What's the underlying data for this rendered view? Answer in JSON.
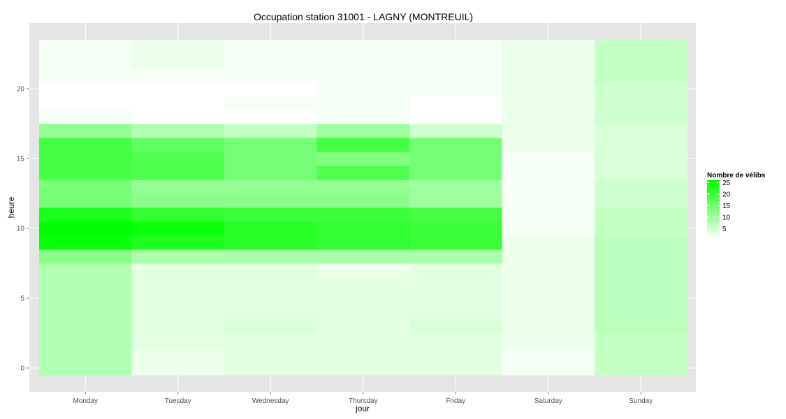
{
  "chart_data": {
    "type": "heatmap",
    "title": "Occupation station 31001 - LAGNY (MONTREUIL)",
    "xlabel": "jour",
    "ylabel": "heure",
    "categories": [
      "Monday",
      "Tuesday",
      "Wednesday",
      "Thursday",
      "Friday",
      "Saturday",
      "Sunday"
    ],
    "y_ticks": [
      0,
      5,
      10,
      15,
      20
    ],
    "y_range": [
      0,
      23
    ],
    "color_scale": {
      "low": "#ffffff",
      "high": "#00ff00",
      "min": 0,
      "max": 26
    },
    "legend": {
      "title": "Nombre de vélibs",
      "labels": [
        5,
        10,
        15,
        20,
        25
      ],
      "position": "right"
    },
    "grid": true,
    "rows": [
      {
        "hour": 0,
        "values": [
          8,
          2,
          3,
          3,
          3,
          1,
          6
        ]
      },
      {
        "hour": 1,
        "values": [
          8,
          2,
          3,
          3,
          3,
          1,
          6
        ]
      },
      {
        "hour": 2,
        "values": [
          8,
          3,
          3,
          3,
          3,
          2,
          6
        ]
      },
      {
        "hour": 3,
        "values": [
          8,
          3,
          4,
          3,
          4,
          2,
          7
        ]
      },
      {
        "hour": 4,
        "values": [
          8,
          3,
          3,
          3,
          3,
          2,
          7
        ]
      },
      {
        "hour": 5,
        "values": [
          8,
          3,
          3,
          3,
          3,
          2,
          7
        ]
      },
      {
        "hour": 6,
        "values": [
          8,
          3,
          3,
          3,
          3,
          2,
          7
        ]
      },
      {
        "hour": 7,
        "values": [
          8,
          3,
          3,
          2,
          3,
          2,
          7
        ]
      },
      {
        "hour": 8,
        "values": [
          12,
          9,
          9,
          9,
          9,
          2,
          7
        ]
      },
      {
        "hour": 9,
        "values": [
          25,
          23,
          22,
          21,
          20,
          2,
          7
        ]
      },
      {
        "hour": 10,
        "values": [
          26,
          25,
          22,
          21,
          20,
          1,
          6
        ]
      },
      {
        "hour": 11,
        "values": [
          23,
          21,
          20,
          20,
          19,
          1,
          6
        ]
      },
      {
        "hour": 12,
        "values": [
          14,
          12,
          12,
          12,
          10,
          1,
          5
        ]
      },
      {
        "hour": 13,
        "values": [
          14,
          11,
          11,
          11,
          10,
          1,
          5
        ]
      },
      {
        "hour": 14,
        "values": [
          19,
          18,
          14,
          18,
          14,
          1,
          4
        ]
      },
      {
        "hour": 15,
        "values": [
          19,
          18,
          14,
          13,
          14,
          1,
          4
        ]
      },
      {
        "hour": 16,
        "values": [
          19,
          16,
          14,
          19,
          14,
          2,
          4
        ]
      },
      {
        "hour": 17,
        "values": [
          11,
          8,
          6,
          10,
          5,
          2,
          4
        ]
      },
      {
        "hour": 18,
        "values": [
          1,
          0,
          0,
          1,
          0,
          2,
          5
        ]
      },
      {
        "hour": 19,
        "values": [
          0,
          0,
          1,
          1,
          0,
          2,
          5
        ]
      },
      {
        "hour": 20,
        "values": [
          0,
          0,
          0,
          1,
          1,
          2,
          5
        ]
      },
      {
        "hour": 21,
        "values": [
          1,
          1,
          1,
          1,
          1,
          2,
          6
        ]
      },
      {
        "hour": 22,
        "values": [
          1,
          2,
          1,
          1,
          1,
          2,
          6
        ]
      },
      {
        "hour": 23,
        "values": [
          1,
          2,
          1,
          1,
          1,
          2,
          6
        ]
      }
    ]
  }
}
